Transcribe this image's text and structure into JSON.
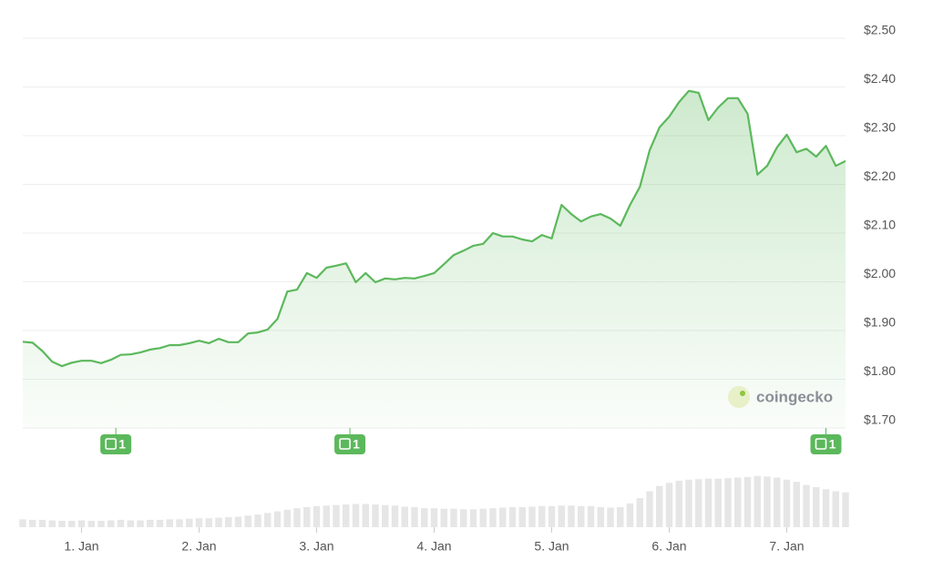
{
  "chart_data": {
    "type": "line",
    "xlim": [
      0,
      84
    ],
    "xticks": [
      {
        "value": 6,
        "label": "1. Jan"
      },
      {
        "value": 18,
        "label": "2. Jan"
      },
      {
        "value": 30,
        "label": "3. Jan"
      },
      {
        "value": 42,
        "label": "4. Jan"
      },
      {
        "value": 54,
        "label": "5. Jan"
      },
      {
        "value": 66,
        "label": "6. Jan"
      },
      {
        "value": 78,
        "label": "7. Jan"
      }
    ],
    "ylim": [
      1.7,
      2.5
    ],
    "yticks": [
      {
        "value": 1.7,
        "label": "$1.70"
      },
      {
        "value": 1.8,
        "label": "$1.80"
      },
      {
        "value": 1.9,
        "label": "$1.90"
      },
      {
        "value": 2.0,
        "label": "$2.00"
      },
      {
        "value": 2.1,
        "label": "$2.10"
      },
      {
        "value": 2.2,
        "label": "$2.20"
      },
      {
        "value": 2.3,
        "label": "$2.30"
      },
      {
        "value": 2.4,
        "label": "$2.40"
      },
      {
        "value": 2.5,
        "label": "$2.50"
      }
    ],
    "grid": true,
    "color": "#5cb85c",
    "values": [
      1.877,
      1.875,
      1.858,
      1.836,
      1.827,
      1.834,
      1.838,
      1.838,
      1.833,
      1.84,
      1.85,
      1.851,
      1.855,
      1.861,
      1.864,
      1.87,
      1.87,
      1.874,
      1.879,
      1.874,
      1.883,
      1.876,
      1.876,
      1.894,
      1.896,
      1.902,
      1.924,
      1.98,
      1.984,
      2.018,
      2.008,
      2.029,
      2.033,
      2.038,
      1.999,
      2.018,
      1.999,
      2.007,
      2.005,
      2.008,
      2.007,
      2.012,
      2.018,
      2.036,
      2.055,
      2.064,
      2.074,
      2.078,
      2.1,
      2.093,
      2.093,
      2.087,
      2.083,
      2.096,
      2.089,
      2.158,
      2.139,
      2.124,
      2.134,
      2.139,
      2.13,
      2.115,
      2.158,
      2.195,
      2.27,
      2.317,
      2.339,
      2.369,
      2.392,
      2.388,
      2.332,
      2.358,
      2.377,
      2.377,
      2.345,
      2.22,
      2.238,
      2.276,
      2.302,
      2.266,
      2.273,
      2.257,
      2.279,
      2.238,
      2.248
    ],
    "volume": {
      "color": "#e6e6e6",
      "lim": [
        0,
        100
      ],
      "values": [
        15,
        14,
        14,
        13,
        12,
        12,
        13,
        12,
        12,
        13,
        14,
        13,
        13,
        14,
        14,
        15,
        15,
        16,
        17,
        17,
        18,
        19,
        20,
        22,
        24,
        27,
        30,
        33,
        36,
        38,
        40,
        41,
        42,
        43,
        44,
        44,
        43,
        42,
        41,
        39,
        38,
        36,
        36,
        35,
        35,
        34,
        34,
        35,
        36,
        37,
        38,
        38,
        39,
        40,
        40,
        41,
        41,
        40,
        40,
        38,
        37,
        38,
        45,
        55,
        68,
        78,
        84,
        88,
        90,
        91,
        92,
        92,
        93,
        94,
        95,
        97,
        96,
        94,
        90,
        86,
        80,
        76,
        72,
        68,
        66
      ]
    },
    "news": [
      {
        "x": 9.5,
        "count": 1
      },
      {
        "x": 33.4,
        "count": 1
      },
      {
        "x": 82,
        "count": 1
      }
    ],
    "watermark": "coingecko"
  }
}
